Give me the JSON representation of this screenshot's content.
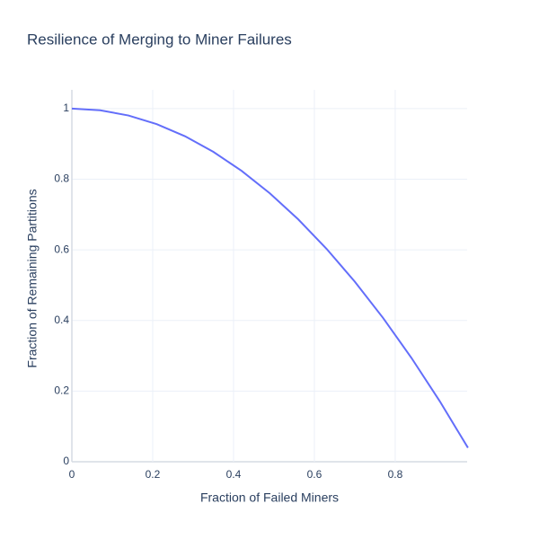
{
  "chart_data": {
    "type": "line",
    "title": "Resilience of Merging to Miner Failures",
    "x_label": "Fraction of Failed Miners",
    "y_label": "Fraction of Remaining Partitions",
    "x": [
      0,
      0.07,
      0.14,
      0.21,
      0.28,
      0.35,
      0.42,
      0.49,
      0.56,
      0.63,
      0.7,
      0.77,
      0.84,
      0.91,
      0.98
    ],
    "series": [
      {
        "color": "#636efa",
        "values": [
          1,
          0.9951,
          0.9804,
          0.9559,
          0.9216,
          0.8775,
          0.8236,
          0.7599,
          0.6864,
          0.6031,
          0.51,
          0.4071,
          0.2944,
          0.1719,
          0.0396
        ]
      }
    ],
    "xlim": [
      0,
      0.978
    ],
    "ylim": [
      0,
      1.053
    ],
    "xticks": [
      0,
      0.2,
      0.4,
      0.6,
      0.8
    ],
    "yticks": [
      0,
      0.2,
      0.4,
      0.6,
      0.8,
      1
    ],
    "grid": true
  }
}
